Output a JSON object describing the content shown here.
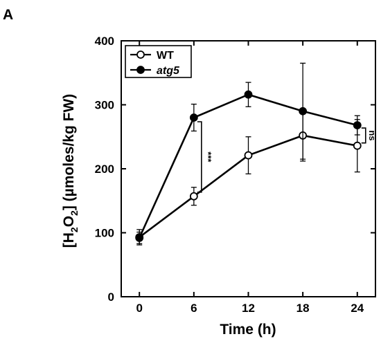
{
  "panel_label": "A",
  "chart_data": {
    "type": "line",
    "title": "",
    "xlabel": "Time (h)",
    "ylabel_parts": [
      "[H",
      "2",
      "O",
      "2",
      "] (µmoles/kg FW)"
    ],
    "x": [
      0,
      6,
      12,
      18,
      24
    ],
    "xlim": [
      -2,
      26
    ],
    "ylim": [
      0,
      400
    ],
    "xticks": [
      "0",
      "6",
      "12",
      "18",
      "24"
    ],
    "yticks": [
      "0",
      "100",
      "200",
      "300",
      "400"
    ],
    "grid": false,
    "legend_position": "top-left",
    "series": [
      {
        "name": "WT",
        "marker": "open-circle",
        "values": [
          93,
          157,
          221,
          252,
          236
        ],
        "err_low": [
          12,
          14,
          29,
          40,
          41
        ],
        "err_high": [
          12,
          14,
          29,
          40,
          41
        ]
      },
      {
        "name": "atg5",
        "marker": "filled-circle",
        "values": [
          92,
          280,
          316,
          290,
          268
        ],
        "err_low": [
          9,
          21,
          19,
          75,
          15
        ],
        "err_high": [
          9,
          21,
          19,
          75,
          15
        ]
      }
    ],
    "annotations": [
      {
        "text": "***",
        "x": 6,
        "bracket": [
          157,
          280
        ]
      },
      {
        "text": "ns",
        "x": 24,
        "bracket": [
          236,
          268
        ]
      }
    ]
  }
}
